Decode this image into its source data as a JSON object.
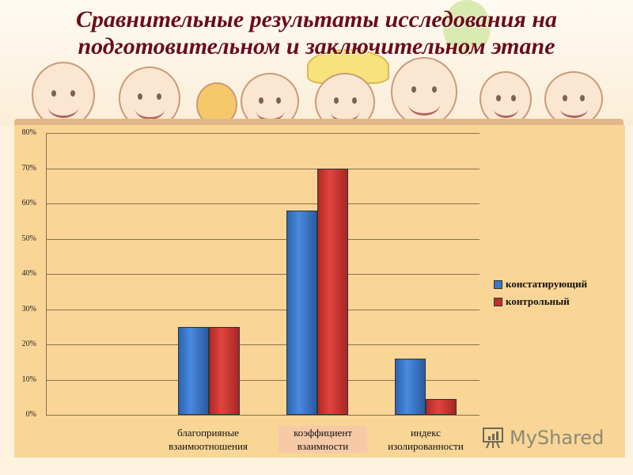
{
  "title": {
    "line1": "Сравнительные результаты исследования на",
    "line2": "подготовительном и заключительном этапе"
  },
  "watermark": {
    "text": "MyShared",
    "icon": "presentation-chart-icon"
  },
  "colors": {
    "title": "#6a0d16",
    "plot_bg": "#f9d596",
    "series_1": "#3a78c8",
    "series_2": "#d03a36"
  },
  "chart_data": {
    "type": "bar",
    "title": "Сравнительные результаты исследования на подготовительном и заключительном этапе",
    "xlabel": "",
    "ylabel": "",
    "ylim": [
      0,
      80
    ],
    "yticks": [
      "0%",
      "10%",
      "20%",
      "30%",
      "40%",
      "50%",
      "60%",
      "70%",
      "80%"
    ],
    "grid": true,
    "legend_position": "right",
    "categories": [
      "благоприяные взаимоотношения",
      "коэффициент взаимности",
      "индекс изолированности"
    ],
    "categories_lines": [
      [
        "благоприяные",
        "взаимоотношения"
      ],
      [
        "коэффициент",
        "взаимности"
      ],
      [
        "индекс",
        "изолированности"
      ]
    ],
    "series": [
      {
        "name": "констатирующий",
        "color": "#3a78c8",
        "values": [
          25,
          58,
          16
        ]
      },
      {
        "name": "контрольный",
        "color": "#d03a36",
        "values": [
          25,
          70,
          4.5
        ]
      }
    ]
  }
}
